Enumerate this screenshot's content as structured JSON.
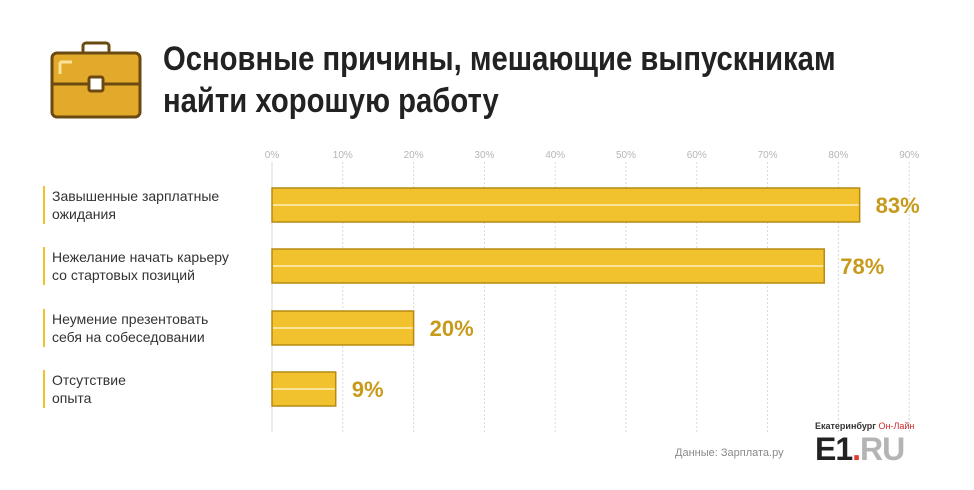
{
  "header": {
    "title_line1": "Основные причины, мешающие выпускникам",
    "title_line2": "найти хорошую работу",
    "icon": "briefcase-icon"
  },
  "chart_data": {
    "type": "bar",
    "orientation": "horizontal",
    "title": "Основные причины, мешающие выпускникам найти хорошую работу",
    "categories": [
      [
        "Завышенные зарплатные",
        "ожидания"
      ],
      [
        "Нежелание начать карьеру",
        "со стартовых позиций"
      ],
      [
        "Неумение презентовать",
        "себя на собеседовании"
      ],
      [
        "Отсутствие",
        "опыта"
      ]
    ],
    "values": [
      83,
      78,
      20,
      9
    ],
    "value_labels": [
      "83%",
      "78%",
      "20%",
      "9%"
    ],
    "xlim": [
      0,
      90
    ],
    "xticks": [
      "0%",
      "10%",
      "20%",
      "30%",
      "40%",
      "50%",
      "60%",
      "70%",
      "80%",
      "90%"
    ],
    "grid": true,
    "bar_color": "#f2c12e",
    "bar_edge_color": "#b88a12",
    "label_color": "#c79a1c"
  },
  "footer": {
    "source": "Данные: Зарплата.ру",
    "logo_city": "Екатеринбург",
    "logo_online": "Он-Лайн",
    "logo_main": "E1",
    "logo_dot": ".",
    "logo_ru": "RU"
  }
}
